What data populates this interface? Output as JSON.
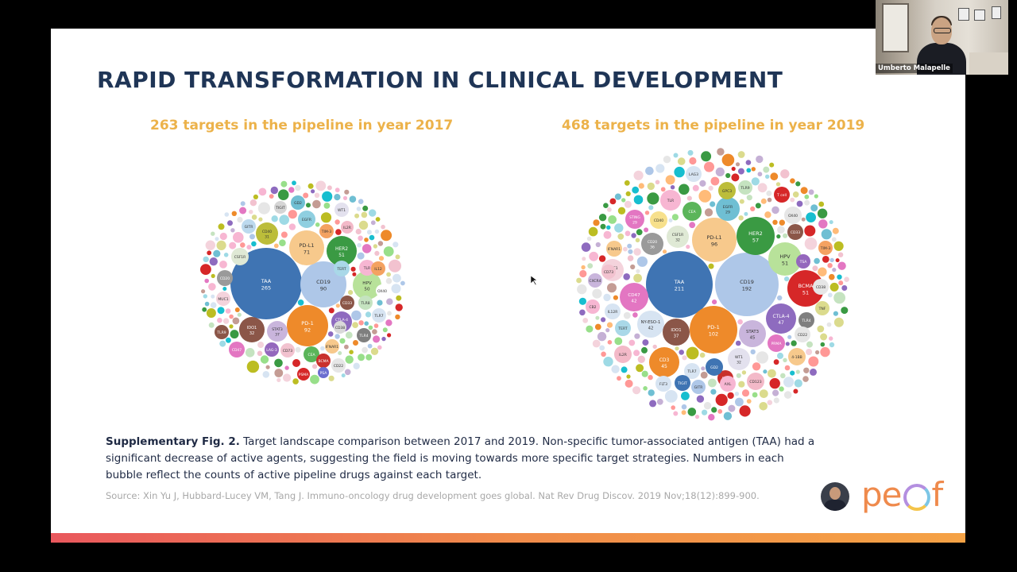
{
  "slide": {
    "title": "RAPID TRANSFORMATION IN CLINICAL DEVELOPMENT",
    "left_subtitle": "263 targets in the pipeline in year 2017",
    "right_subtitle": "468 targets in the pipeline in year 2019",
    "caption_bold": "Supplementary Fig. 2.",
    "caption_text": " Target landscape comparison between 2017 and 2019. Non-specific tumor-associated antigen (TAA) had a significant decrease of active agents, suggesting the field is moving towards more specific target strategies. Numbers in each bubble reflect the counts of active pipeline drugs against each target.",
    "source": "Source: Xin Yu J, Hubbard-Lucey VM, Tang J. Immuno-oncology drug development goes global. Nat Rev Drug Discov. 2019 Nov;18(12):899-900.",
    "logo_text": "peof"
  },
  "video": {
    "participant_name": "Umberto Malapelle"
  },
  "bubbles_2017": [
    {
      "name": "TAA",
      "count": "265",
      "color": "#3f74b3"
    },
    {
      "name": "PD-1",
      "count": "92",
      "color": "#ee8a2a"
    },
    {
      "name": "CD19",
      "count": "90",
      "color": "#aec7e8"
    },
    {
      "name": "PD-L1",
      "count": "71",
      "color": "#f7c98c"
    },
    {
      "name": "HER2",
      "count": "51",
      "color": "#3a9a43"
    },
    {
      "name": "HPV",
      "count": "50",
      "color": "#b8e29a"
    },
    {
      "name": "IDO1",
      "count": "32",
      "color": "#8b5648"
    },
    {
      "name": "STAT3",
      "count": "37",
      "color": "#c9b5dc"
    },
    {
      "name": "CTLA-4",
      "count": "29",
      "color": "#8e6bbf"
    },
    {
      "name": "CD40",
      "count": "31",
      "color": "#bcbd3a"
    },
    {
      "name": "EGFR",
      "count": "",
      "color": "#8fcfe0"
    },
    {
      "name": "TERT",
      "count": "",
      "color": "#a9d8e8"
    },
    {
      "name": "TIM-3",
      "count": "",
      "color": "#f4a261"
    },
    {
      "name": "GD2",
      "count": "",
      "color": "#6fbfd3"
    },
    {
      "name": "WT1",
      "count": "",
      "color": "#e3e1ee"
    },
    {
      "name": "IL2R",
      "count": "",
      "color": "#f3b9c8"
    },
    {
      "name": "TIGIT",
      "count": "",
      "color": "#d5d5d5"
    },
    {
      "name": "GITR",
      "count": "",
      "color": "#bcd9ee"
    },
    {
      "name": "CSF1R",
      "count": "",
      "color": "#dfe9d5"
    },
    {
      "name": "CD20",
      "count": "",
      "color": "#9a9a9a"
    },
    {
      "name": "MUC1",
      "count": "",
      "color": "#f4d3dc"
    },
    {
      "name": "CD47",
      "count": "",
      "color": "#e376c2"
    },
    {
      "name": "TLR9",
      "count": "",
      "color": "#8b5648"
    },
    {
      "name": "LAG-3",
      "count": "",
      "color": "#9467bd"
    },
    {
      "name": "CD73",
      "count": "",
      "color": "#f2c2cf"
    },
    {
      "name": "CEA",
      "count": "",
      "color": "#5bb55a"
    },
    {
      "name": "IFNAR1",
      "count": "",
      "color": "#f7c98c"
    },
    {
      "name": "CD38",
      "count": "",
      "color": "#d9d9d9"
    },
    {
      "name": "TLR8",
      "count": "",
      "color": "#c5e3c0"
    },
    {
      "name": "TLR7",
      "count": "",
      "color": "#d7e4f2"
    },
    {
      "name": "OX40",
      "count": "",
      "color": "#ffffff"
    },
    {
      "name": "CD33",
      "count": "",
      "color": "#8b5648"
    },
    {
      "name": "PSMA",
      "count": "",
      "color": "#d62728"
    },
    {
      "name": "BCMA",
      "count": "",
      "color": "#c9302c"
    },
    {
      "name": "CD22",
      "count": "",
      "color": "#e6e6e6"
    },
    {
      "name": "TLR4",
      "count": "",
      "color": "#7f7f7f"
    },
    {
      "name": "TLR",
      "count": "",
      "color": "#f7b6d2"
    },
    {
      "name": "IL12",
      "count": "",
      "color": "#f4a261"
    },
    {
      "name": "PSA",
      "count": "",
      "color": "#6b6ecf"
    }
  ],
  "bubbles_2019": [
    {
      "name": "TAA",
      "count": "211",
      "color": "#3f74b3"
    },
    {
      "name": "CD19",
      "count": "192",
      "color": "#aec7e8"
    },
    {
      "name": "PD-1",
      "count": "102",
      "color": "#ee8a2a"
    },
    {
      "name": "PD-L1",
      "count": "96",
      "color": "#f7c98c"
    },
    {
      "name": "HER2",
      "count": "57",
      "color": "#3a9a43"
    },
    {
      "name": "HPV",
      "count": "51",
      "color": "#b8e29a"
    },
    {
      "name": "BCMA",
      "count": "51",
      "color": "#d62728"
    },
    {
      "name": "CTLA-4",
      "count": "47",
      "color": "#8e6bbf"
    },
    {
      "name": "STAT3",
      "count": "45",
      "color": "#c9b5dc"
    },
    {
      "name": "CD3",
      "count": "45",
      "color": "#ee8a2a"
    },
    {
      "name": "NY-ESO-1",
      "count": "42",
      "color": "#d7e4f2"
    },
    {
      "name": "CD47",
      "count": "42",
      "color": "#e376c2"
    },
    {
      "name": "MUC1",
      "count": "38",
      "color": "#f4d3dc"
    },
    {
      "name": "CD20",
      "count": "36",
      "color": "#9a9a9a"
    },
    {
      "name": "IDO1",
      "count": "37",
      "color": "#8b5648"
    },
    {
      "name": "CSF1R",
      "count": "32",
      "color": "#dfe9d5"
    },
    {
      "name": "WT1",
      "count": "32",
      "color": "#e3e1ee"
    },
    {
      "name": "EGFR",
      "count": "29",
      "color": "#6fbfd3"
    },
    {
      "name": "STING",
      "count": "29",
      "color": "#e376c2"
    },
    {
      "name": "CD123",
      "count": "",
      "color": "#f3b9c8"
    },
    {
      "name": "LAG3",
      "count": "",
      "color": "#d7e4f2"
    },
    {
      "name": "GPC3",
      "count": "",
      "color": "#bcbd3a"
    },
    {
      "name": "TLR9",
      "count": "",
      "color": "#c5e3c0"
    },
    {
      "name": "TLR",
      "count": "",
      "color": "#f7b6d2"
    },
    {
      "name": "CEA",
      "count": "",
      "color": "#5bb55a"
    },
    {
      "name": "CD40",
      "count": "",
      "color": "#f7e08c"
    },
    {
      "name": "IFNAR1",
      "count": "",
      "color": "#f7c98c"
    },
    {
      "name": "CD73",
      "count": "",
      "color": "#f2c2cf"
    },
    {
      "name": "CXCR4",
      "count": "",
      "color": "#c9b5dc"
    },
    {
      "name": "CB2",
      "count": "",
      "color": "#f7b6d2"
    },
    {
      "name": "IL12R",
      "count": "",
      "color": "#d7e4f2"
    },
    {
      "name": "TERT",
      "count": "",
      "color": "#a9d8e8"
    },
    {
      "name": "IL2R",
      "count": "",
      "color": "#f3b9c8"
    },
    {
      "name": "OX40",
      "count": "",
      "color": "#e6e6e6"
    },
    {
      "name": "CD33",
      "count": "",
      "color": "#8b5648"
    },
    {
      "name": "T cell",
      "count": "",
      "color": "#d62728"
    },
    {
      "name": "TIM-3",
      "count": "",
      "color": "#f4a261"
    },
    {
      "name": "TSA",
      "count": "",
      "color": "#9467bd"
    },
    {
      "name": "CD38",
      "count": "",
      "color": "#e6e6e6"
    },
    {
      "name": "TNF",
      "count": "",
      "color": "#dbdb8d"
    },
    {
      "name": "TLR4",
      "count": "",
      "color": "#7f7f7f"
    },
    {
      "name": "CD22",
      "count": "",
      "color": "#e6e6e6"
    },
    {
      "name": "PRMA",
      "count": "",
      "color": "#e376c2"
    },
    {
      "name": "4-1BB",
      "count": "",
      "color": "#f7c98c"
    },
    {
      "name": "EBV",
      "count": "",
      "color": "#c9302c"
    },
    {
      "name": "AXL",
      "count": "",
      "color": "#f7b6d2"
    },
    {
      "name": "GD2",
      "count": "",
      "color": "#3f74b3"
    },
    {
      "name": "TLR7",
      "count": "",
      "color": "#d7e4f2"
    },
    {
      "name": "TIGIT",
      "count": "",
      "color": "#3f74b3"
    },
    {
      "name": "GITR",
      "count": "",
      "color": "#aec7e8"
    },
    {
      "name": "FLT3",
      "count": "",
      "color": "#d7e4f2"
    }
  ],
  "colors": {
    "title": "#1f3556",
    "subtitle": "#ecb24a",
    "caption": "#1f2a44",
    "source": "#a8a8a8",
    "bottom_bar_start": "#e9585d",
    "bottom_bar_end": "#f5a245"
  }
}
